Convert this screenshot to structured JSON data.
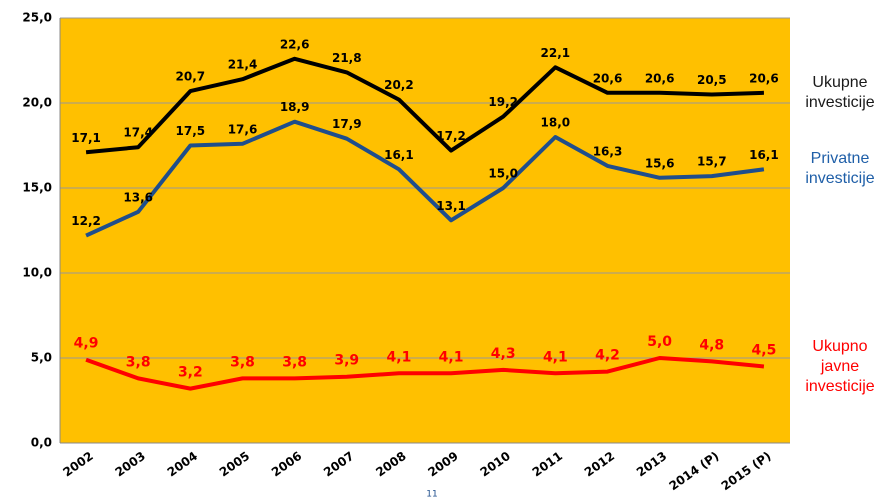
{
  "chart_data": {
    "type": "line",
    "categories": [
      "2002",
      "2003",
      "2004",
      "2005",
      "2006",
      "2007",
      "2008",
      "2009",
      "2010",
      "2011",
      "2012",
      "2013",
      "2014 (P)",
      "2015 (P)"
    ],
    "series": [
      {
        "name": "Ukupne investicije",
        "color": "#000000",
        "label_color": "#000000",
        "legend_color": "#1a1a1a",
        "values": [
          17.1,
          17.4,
          20.7,
          21.4,
          22.6,
          21.8,
          20.2,
          17.2,
          19.2,
          22.1,
          20.6,
          20.6,
          20.5,
          20.6
        ],
        "value_labels": [
          "17,1",
          "17,4",
          "20,7",
          "21,4",
          "22,6",
          "21,8",
          "20,2",
          "17,2",
          "19,2",
          "22,1",
          "20,6",
          "20,6",
          "20,5",
          "20,6"
        ]
      },
      {
        "name": "Privatne investicije",
        "color": "#1f4e8c",
        "label_color": "#000000",
        "legend_color": "#1f5fa8",
        "values": [
          12.2,
          13.6,
          17.5,
          17.6,
          18.9,
          17.9,
          16.1,
          13.1,
          15.0,
          18.0,
          16.3,
          15.6,
          15.7,
          16.1
        ],
        "value_labels": [
          "12,2",
          "13,6",
          "17,5",
          "17,6",
          "18,9",
          "17,9",
          "16,1",
          "13,1",
          "15,0",
          "18,0",
          "16,3",
          "15,6",
          "15,7",
          "16,1"
        ]
      },
      {
        "name": "Ukupno javne investicije",
        "color": "#ff0000",
        "label_color": "#ff0000",
        "legend_color": "#ff0000",
        "values": [
          4.9,
          3.8,
          3.2,
          3.8,
          3.8,
          3.9,
          4.1,
          4.1,
          4.3,
          4.1,
          4.2,
          5.0,
          4.8,
          4.5
        ],
        "value_labels": [
          "4,9",
          "3,8",
          "3,2",
          "3,8",
          "3,8",
          "3,9",
          "4,1",
          "4,1",
          "4,3",
          "4,1",
          "4,2",
          "5,0",
          "4,8",
          "4,5"
        ]
      }
    ],
    "ylim": [
      0,
      25
    ],
    "yticks": [
      {
        "value": 0,
        "label": "0,0"
      },
      {
        "value": 5,
        "label": "5,0"
      },
      {
        "value": 10,
        "label": "10,0"
      },
      {
        "value": 15,
        "label": "15,0"
      },
      {
        "value": 20,
        "label": "20,0"
      },
      {
        "value": 25,
        "label": "25,0"
      }
    ],
    "grid": true,
    "background": "#ffc000"
  },
  "page_number": "11"
}
